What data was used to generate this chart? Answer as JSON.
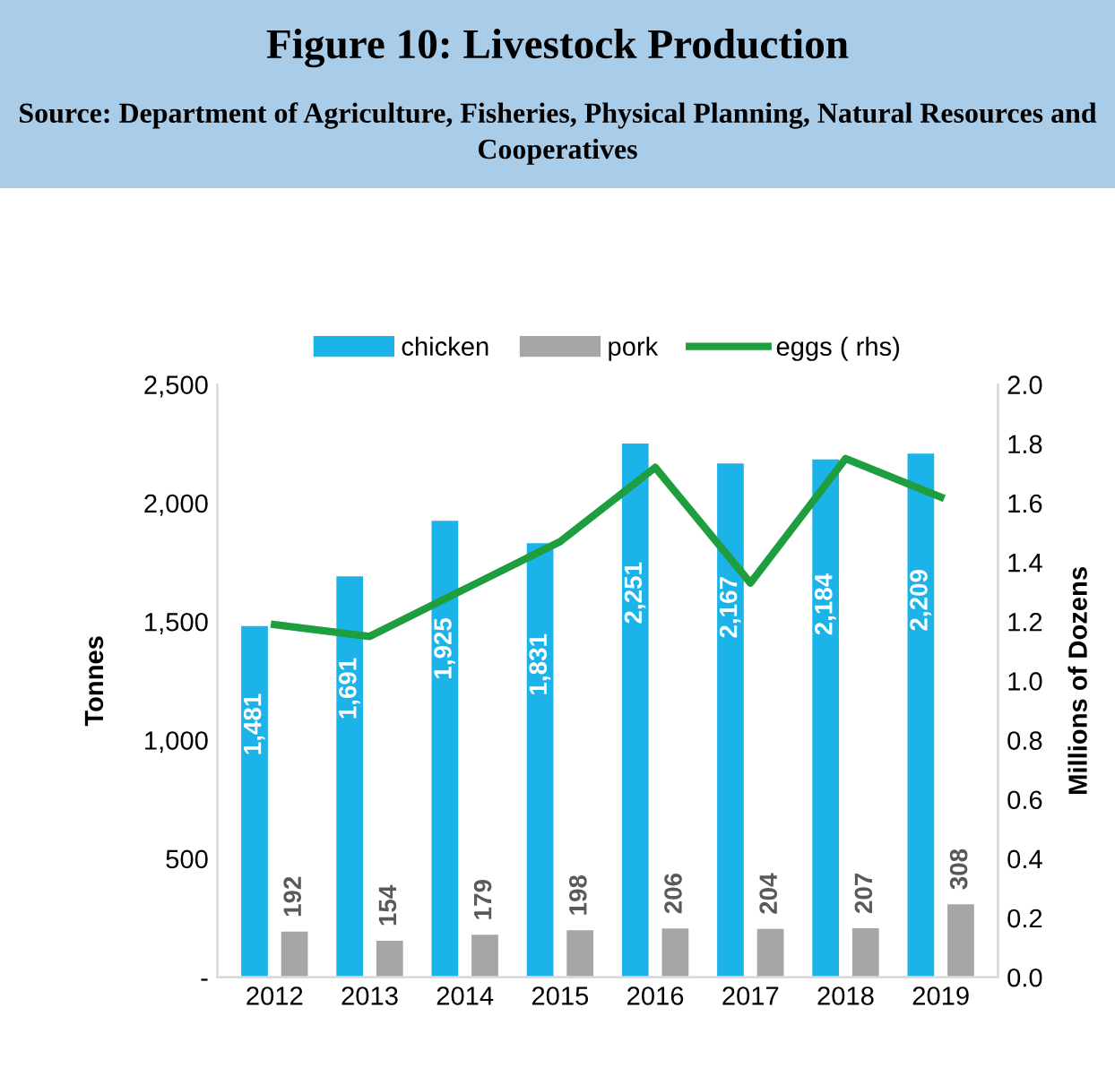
{
  "chart_data": {
    "type": "bar",
    "title": "Figure 10: Livestock Production",
    "subtitle": "Source: Department of Agriculture, Fisheries, Physical Planning, Natural Resources and Cooperatives",
    "ylabel": "Tonnes",
    "y2label": "Millions of Dozens",
    "categories": [
      "2012",
      "2013",
      "2014",
      "2015",
      "2016",
      "2017",
      "2018",
      "2019"
    ],
    "series": [
      {
        "name": "chicken",
        "color": "#1cb4e8",
        "values": [
          1481,
          1691,
          1925,
          1831,
          2251,
          2167,
          2184,
          2209
        ],
        "value_labels": [
          "1,481",
          "1,691",
          "1,925",
          "1,831",
          "2,251",
          "2,167",
          "2,184",
          "2,209"
        ]
      },
      {
        "name": "pork",
        "color": "#a6a6a6",
        "values": [
          192,
          154,
          179,
          198,
          206,
          204,
          207,
          308
        ],
        "value_labels": [
          "192",
          "154",
          "179",
          "198",
          "206",
          "204",
          "207",
          "308"
        ]
      },
      {
        "name": "eggs ( rhs)",
        "type": "line",
        "axis": "y2",
        "color": "#1e9e3e",
        "values": [
          1.19,
          1.15,
          1.31,
          1.47,
          1.72,
          1.33,
          1.75,
          1.62
        ]
      }
    ],
    "ylim": [
      0,
      2500
    ],
    "yticks": [
      {
        "value": 0,
        "label": "-"
      },
      {
        "value": 500,
        "label": "500"
      },
      {
        "value": 1000,
        "label": "1,000"
      },
      {
        "value": 1500,
        "label": "1,500"
      },
      {
        "value": 2000,
        "label": "2,000"
      },
      {
        "value": 2500,
        "label": "2,500"
      }
    ],
    "y2lim": [
      0,
      2.0
    ],
    "y2ticks": [
      {
        "value": 0,
        "label": "0.0"
      },
      {
        "value": 0.2,
        "label": "0.2"
      },
      {
        "value": 0.4,
        "label": "0.4"
      },
      {
        "value": 0.6,
        "label": "0.6"
      },
      {
        "value": 0.8,
        "label": "0.8"
      },
      {
        "value": 1.0,
        "label": "1.0"
      },
      {
        "value": 1.2,
        "label": "1.2"
      },
      {
        "value": 1.4,
        "label": "1.4"
      },
      {
        "value": 1.6,
        "label": "1.6"
      },
      {
        "value": 1.8,
        "label": "1.8"
      },
      {
        "value": 2.0,
        "label": "2.0"
      }
    ],
    "grid": false,
    "legend": "top",
    "line_style": "solid",
    "marker": "none"
  }
}
